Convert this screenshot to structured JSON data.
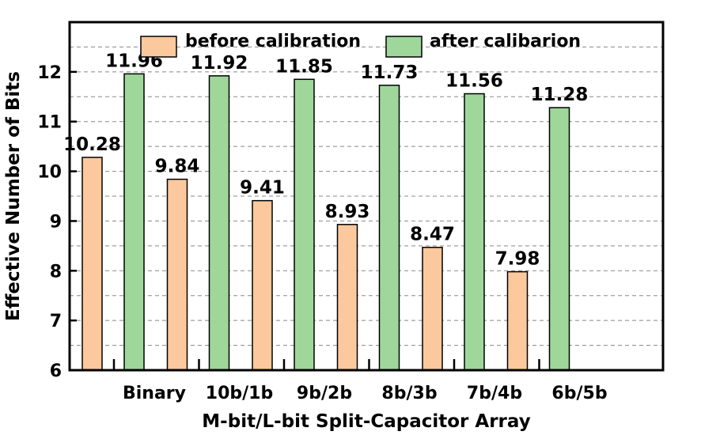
{
  "chart_data": {
    "type": "bar",
    "title": "",
    "xlabel": "M-bit/L-bit Split-Capacitor Array",
    "ylabel": "Effective Number of Bits",
    "categories": [
      "Binary",
      "10b/1b",
      "9b/2b",
      "8b/3b",
      "7b/4b",
      "6b/5b"
    ],
    "series": [
      {
        "name": "before calibration",
        "values": [
          10.28,
          9.84,
          9.41,
          8.93,
          8.47,
          7.98
        ],
        "labels": [
          "10.28",
          "9.84",
          "9.41",
          "8.93",
          "8.47",
          "7.98"
        ],
        "color": "#fbc99d"
      },
      {
        "name": "after calibarion",
        "values": [
          11.96,
          11.92,
          11.85,
          11.73,
          11.56,
          11.28
        ],
        "labels": [
          "11.96",
          "11.92",
          "11.85",
          "11.73",
          "11.56",
          "11.28"
        ],
        "color": "#9fd79b"
      }
    ],
    "ylim": [
      6,
      13
    ],
    "yticks": [
      "6",
      "7",
      "8",
      "9",
      "10",
      "11",
      "12"
    ],
    "grid": "horizontal dashed at every 0.5",
    "legend_position": "top"
  }
}
